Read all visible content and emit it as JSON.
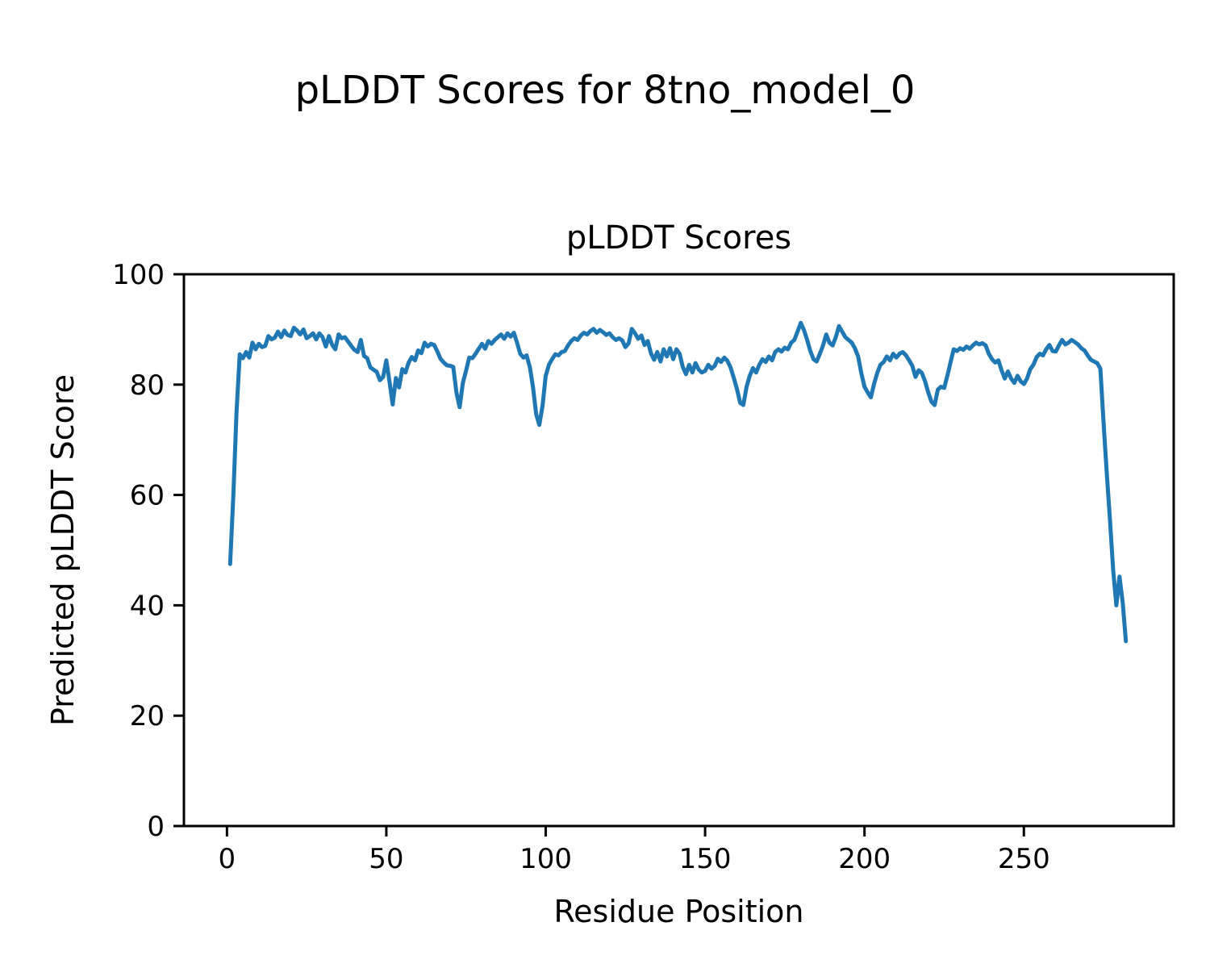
{
  "figure": {
    "title": "pLDDT Scores for 8tno_model_0"
  },
  "chart_data": {
    "type": "line",
    "title": "pLDDT Scores",
    "xlabel": "Residue Position",
    "ylabel": "Predicted pLDDT Score",
    "x_ticks": [
      0,
      50,
      100,
      150,
      200,
      250
    ],
    "y_ticks": [
      0,
      20,
      40,
      60,
      80,
      100
    ],
    "xlim": [
      -13.5,
      297
    ],
    "ylim": [
      0,
      100
    ],
    "grid": false,
    "legend": "none",
    "line_color": "#1f77b4",
    "x_start": 1,
    "x_step": 1,
    "values": [
      47.5,
      60.0,
      75.0,
      85.5,
      84.8,
      85.9,
      84.9,
      87.6,
      86.4,
      87.4,
      86.8,
      87.0,
      88.8,
      88.2,
      88.5,
      89.6,
      88.6,
      89.8,
      89.0,
      88.8,
      90.3,
      89.8,
      89.1,
      90.0,
      88.4,
      88.8,
      89.3,
      88.2,
      89.3,
      88.6,
      86.9,
      88.8,
      87.2,
      86.4,
      89.1,
      88.4,
      88.6,
      87.8,
      87.0,
      86.3,
      85.9,
      88.1,
      85.2,
      84.8,
      83.1,
      82.7,
      82.3,
      80.8,
      81.4,
      84.4,
      80.5,
      76.4,
      81.2,
      79.5,
      82.8,
      82.2,
      84.0,
      85.0,
      84.4,
      86.2,
      85.7,
      87.6,
      86.9,
      87.4,
      87.2,
      86.0,
      84.7,
      84.0,
      83.5,
      83.4,
      83.2,
      78.5,
      75.9,
      80.3,
      82.5,
      84.9,
      84.8,
      85.6,
      86.5,
      87.4,
      86.5,
      87.9,
      87.4,
      88.1,
      88.6,
      89.1,
      88.3,
      89.3,
      88.7,
      89.4,
      87.6,
      85.6,
      84.9,
      85.3,
      83.2,
      79.6,
      74.6,
      72.7,
      76.2,
      81.6,
      83.6,
      84.6,
      85.5,
      85.3,
      85.9,
      86.1,
      87.1,
      87.9,
      88.4,
      88.1,
      88.9,
      89.4,
      89.1,
      89.7,
      90.1,
      89.4,
      89.9,
      89.5,
      89.0,
      89.3,
      88.6,
      88.1,
      88.4,
      88.0,
      86.8,
      87.5,
      90.1,
      89.3,
      88.3,
      88.9,
      87.2,
      87.9,
      85.7,
      84.5,
      85.9,
      84.2,
      86.4,
      85.1,
      86.6,
      84.6,
      86.4,
      85.6,
      83.2,
      81.9,
      83.6,
      82.2,
      83.9,
      82.7,
      82.2,
      82.5,
      83.6,
      82.9,
      83.4,
      84.7,
      84.1,
      84.9,
      84.3,
      83.1,
      81.2,
      79.2,
      76.7,
      76.3,
      79.6,
      81.6,
      83.0,
      82.2,
      83.6,
      84.6,
      84.1,
      85.1,
      84.4,
      85.9,
      86.4,
      86.0,
      86.7,
      86.4,
      87.6,
      88.1,
      89.6,
      91.2,
      89.9,
      88.1,
      86.1,
      84.6,
      84.2,
      85.6,
      87.1,
      89.1,
      87.6,
      87.1,
      88.6,
      90.6,
      89.6,
      88.6,
      88.1,
      87.6,
      86.6,
      85.1,
      82.1,
      79.6,
      78.6,
      77.7,
      80.1,
      82.1,
      83.6,
      84.1,
      85.1,
      84.4,
      85.6,
      84.9,
      85.6,
      85.9,
      85.3,
      84.4,
      83.4,
      81.4,
      82.6,
      82.1,
      80.6,
      78.6,
      76.9,
      76.3,
      79.1,
      79.6,
      79.4,
      81.6,
      84.1,
      86.4,
      86.1,
      86.6,
      86.3,
      86.9,
      86.5,
      87.1,
      87.6,
      87.3,
      87.5,
      87.1,
      85.6,
      84.6,
      84.0,
      84.4,
      82.6,
      81.1,
      82.4,
      81.1,
      80.3,
      81.6,
      80.6,
      80.1,
      81.1,
      82.8,
      83.6,
      85.0,
      85.6,
      85.3,
      86.4,
      87.2,
      86.1,
      86.0,
      87.1,
      88.1,
      87.3,
      87.6,
      88.1,
      87.7,
      87.3,
      86.6,
      86.2,
      85.3,
      84.5,
      84.2,
      83.9,
      82.9,
      73.0,
      64.0,
      55.5,
      46.5,
      40.0,
      45.2,
      40.5,
      33.5
    ]
  }
}
